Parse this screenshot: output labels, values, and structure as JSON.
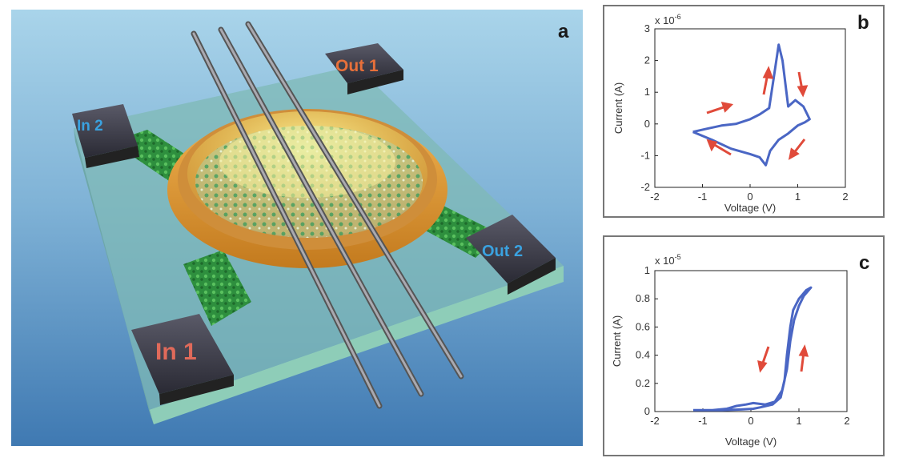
{
  "panel_a": {
    "letter": "a",
    "pads": {
      "out1": "Out 1",
      "in2": "In 2",
      "out2": "Out 2",
      "in1": "In 1"
    },
    "colors": {
      "out_label": "#e8703a",
      "in2_label": "#3aa2e0",
      "in1_label": "#e06a5a",
      "out2_label": "#3aa2e0"
    }
  },
  "chart_data": [
    {
      "id": "b",
      "type": "line",
      "panel_letter": "b",
      "xlabel": "Voltage (V)",
      "ylabel": "Current (A)",
      "scale_label": "x 10",
      "scale_exponent": "-6",
      "xlim": [
        -2,
        2
      ],
      "ylim": [
        -2,
        3
      ],
      "xticks": [
        "-2",
        "-1",
        "0",
        "1",
        "2"
      ],
      "yticks": [
        "-2",
        "-1",
        "0",
        "1",
        "2",
        "3"
      ],
      "series": [
        {
          "color": "#4a66c4",
          "points": [
            [
              -1.2,
              -0.25
            ],
            [
              -0.8,
              -0.5
            ],
            [
              -0.4,
              -0.78
            ],
            [
              0.0,
              -0.95
            ],
            [
              0.2,
              -1.05
            ],
            [
              0.33,
              -1.3
            ],
            [
              0.42,
              -0.85
            ],
            [
              0.6,
              -0.5
            ],
            [
              0.8,
              -0.3
            ],
            [
              1.0,
              -0.05
            ],
            [
              1.15,
              0.05
            ],
            [
              1.25,
              0.15
            ],
            [
              1.12,
              0.55
            ],
            [
              0.95,
              0.75
            ],
            [
              0.8,
              0.55
            ],
            [
              0.68,
              2.0
            ],
            [
              0.6,
              2.5
            ],
            [
              0.5,
              1.5
            ],
            [
              0.4,
              0.5
            ],
            [
              0.2,
              0.3
            ],
            [
              0.0,
              0.15
            ],
            [
              -0.3,
              0.0
            ],
            [
              -0.6,
              -0.05
            ],
            [
              -0.9,
              -0.15
            ],
            [
              -1.2,
              -0.25
            ]
          ]
        }
      ]
    },
    {
      "id": "c",
      "type": "line",
      "panel_letter": "c",
      "xlabel": "Voltage (V)",
      "ylabel": "Current (A)",
      "scale_label": "x 10",
      "scale_exponent": "-5",
      "xlim": [
        -2,
        2
      ],
      "ylim": [
        0,
        1
      ],
      "xticks": [
        "-2",
        "-1",
        "0",
        "1",
        "2"
      ],
      "yticks": [
        "0",
        "0.2",
        "0.4",
        "0.6",
        "0.8",
        "1"
      ],
      "series": [
        {
          "color": "#4a66c4",
          "points": [
            [
              -1.2,
              0.01
            ],
            [
              -0.8,
              0.01
            ],
            [
              -0.5,
              0.02
            ],
            [
              -0.3,
              0.04
            ],
            [
              -0.1,
              0.05
            ],
            [
              0.05,
              0.06
            ],
            [
              0.3,
              0.05
            ],
            [
              0.5,
              0.07
            ],
            [
              0.65,
              0.15
            ],
            [
              0.75,
              0.3
            ],
            [
              0.82,
              0.5
            ],
            [
              0.9,
              0.65
            ],
            [
              1.0,
              0.75
            ],
            [
              1.1,
              0.82
            ],
            [
              1.25,
              0.88
            ],
            [
              1.15,
              0.86
            ],
            [
              1.0,
              0.8
            ],
            [
              0.88,
              0.72
            ],
            [
              0.82,
              0.6
            ],
            [
              0.75,
              0.4
            ],
            [
              0.7,
              0.22
            ],
            [
              0.62,
              0.1
            ],
            [
              0.45,
              0.05
            ],
            [
              0.2,
              0.03
            ],
            [
              0.05,
              0.02
            ],
            [
              -0.2,
              0.015
            ],
            [
              -0.6,
              0.01
            ],
            [
              -1.2,
              0.01
            ]
          ]
        }
      ]
    }
  ]
}
